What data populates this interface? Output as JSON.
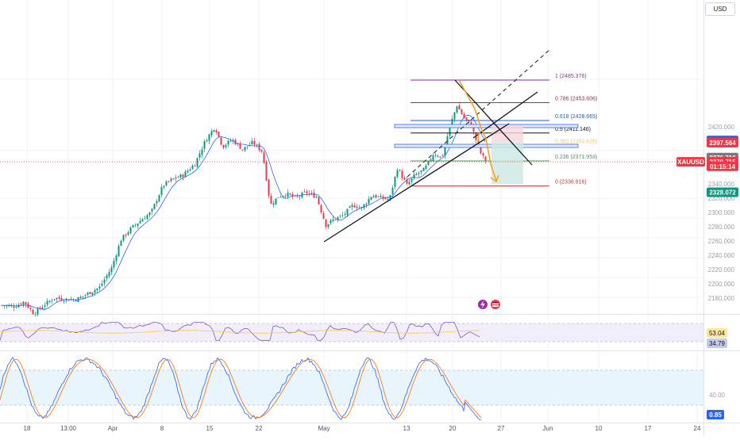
{
  "toolbar": {
    "currency_button": "USD"
  },
  "price_axis": {
    "labels": [
      {
        "text": "2420.000",
        "price": 2420
      },
      {
        "text": "2380.000",
        "price": 2380
      },
      {
        "text": "2340.000",
        "price": 2340
      },
      {
        "text": "2320.000",
        "price": 2320
      },
      {
        "text": "2300.000",
        "price": 2300
      },
      {
        "text": "2280.000",
        "price": 2280
      },
      {
        "text": "2260.000",
        "price": 2260
      },
      {
        "text": "2240.000",
        "price": 2240
      },
      {
        "text": "2220.000",
        "price": 2220
      },
      {
        "text": "2200.000",
        "price": 2200
      },
      {
        "text": "2180.000",
        "price": 2180
      }
    ],
    "tags": [
      {
        "text": "2400.699",
        "price": 2400.699,
        "color": "#2962ff"
      },
      {
        "text": "2397.564",
        "price": 2397.564,
        "color": "#f23645"
      },
      {
        "text": "2376.716",
        "price": 2376.716,
        "color": "#787b86"
      },
      {
        "text": "2370.715",
        "price": 2370.715,
        "color": "#f23645"
      },
      {
        "text": "01:15:14",
        "price": 2364.5,
        "color": "#f23645"
      },
      {
        "text": "2328.072",
        "price": 2328.072,
        "color": "#089981"
      }
    ]
  },
  "symbol": {
    "name": "XAUUSD",
    "last_price": 2370.715,
    "countdown": "01:15:14",
    "color": "#f23645"
  },
  "fib_levels": [
    {
      "ratio": "1",
      "label": "1 (2485.376)",
      "price": 2485.376,
      "color": "#9c27b0"
    },
    {
      "ratio": "0.786",
      "label": "0.786 (2453.606)",
      "price": 2453.606,
      "color": "#c2185b"
    },
    {
      "ratio": "0.618",
      "label": "0.618 (2428.665)",
      "price": 2428.665,
      "color": "#1565c0"
    },
    {
      "ratio": "0.5",
      "label": "0.5 (2411.146)",
      "price": 2411.146,
      "color": "#131722"
    },
    {
      "ratio": "0.382",
      "label": "0.382 (2393.626)",
      "price": 2393.626,
      "color": "#f9c846"
    },
    {
      "ratio": "0.236",
      "label": "0.236 (2371.953)",
      "price": 2371.953,
      "color": "#43a047"
    },
    {
      "ratio": "0",
      "label": "0 (2336.916)",
      "price": 2336.916,
      "color": "#d32f2f"
    }
  ],
  "rsi_panel": {
    "values": [
      {
        "text": "53.04",
        "color": "#f9e79f",
        "text_color": "#131722"
      },
      {
        "text": "34.79",
        "color": "#c5cae9",
        "text_color": "#131722"
      }
    ]
  },
  "stoch_panel": {
    "levels": [
      {
        "text": "40.00",
        "price": 40
      }
    ],
    "value": {
      "text": "0.85",
      "color": "#2962ff"
    }
  },
  "time_axis": {
    "labels": [
      {
        "text": "18"
      },
      {
        "text": "13:00"
      },
      {
        "text": "Apr"
      },
      {
        "text": "8"
      },
      {
        "text": "15"
      },
      {
        "text": "22"
      },
      {
        "text": "May"
      },
      {
        "text": "13"
      },
      {
        "text": "20"
      },
      {
        "text": "27"
      },
      {
        "text": "Jun"
      },
      {
        "text": "10"
      },
      {
        "text": "17"
      },
      {
        "text": "24"
      }
    ]
  },
  "colors": {
    "up": "#089981",
    "down": "#f23645",
    "ma": "#2962ff",
    "trendline": "#131722",
    "projection": "#f7a21b"
  },
  "icons": [
    "lightning-icon",
    "flag-icon"
  ]
}
